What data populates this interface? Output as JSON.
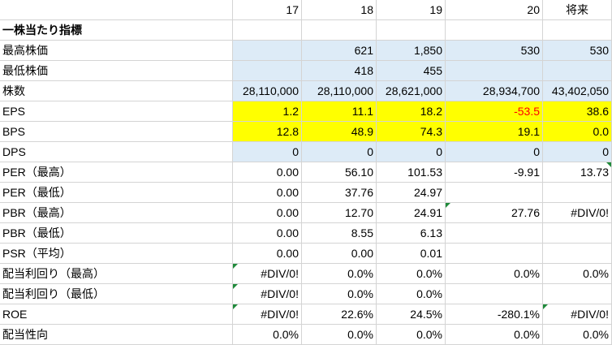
{
  "header": [
    "",
    "17",
    "18",
    "19",
    "20",
    "将来"
  ],
  "section_title": "一株当たり指標",
  "rows": [
    {
      "label": "最高株価",
      "values": [
        "",
        "621",
        "1,850",
        "530",
        "530"
      ]
    },
    {
      "label": "最低株価",
      "values": [
        "",
        "418",
        "455",
        "",
        ""
      ]
    },
    {
      "label": "株数",
      "values": [
        "28,110,000",
        "28,110,000",
        "28,621,000",
        "28,934,700",
        "43,402,050"
      ]
    },
    {
      "label": "EPS",
      "values": [
        "1.2",
        "11.1",
        "18.2",
        "-53.5",
        "38.6"
      ]
    },
    {
      "label": "BPS",
      "values": [
        "12.8",
        "48.9",
        "74.3",
        "19.1",
        "0.0"
      ]
    },
    {
      "label": "DPS",
      "values": [
        "0",
        "0",
        "0",
        "0",
        "0"
      ]
    },
    {
      "label": "PER（最高）",
      "values": [
        "0.00",
        "56.10",
        "101.53",
        "-9.91",
        "13.73"
      ]
    },
    {
      "label": "PER（最低）",
      "values": [
        "0.00",
        "37.76",
        "24.97",
        "",
        ""
      ]
    },
    {
      "label": "PBR（最高）",
      "values": [
        "0.00",
        "12.70",
        "24.91",
        "27.76",
        "#DIV/0!"
      ]
    },
    {
      "label": "PBR（最低）",
      "values": [
        "0.00",
        "8.55",
        "6.13",
        "",
        ""
      ]
    },
    {
      "label": "PSR（平均）",
      "values": [
        "0.00",
        "0.00",
        "0.01",
        "",
        ""
      ]
    },
    {
      "label": "配当利回り（最高）",
      "values": [
        "#DIV/0!",
        "0.0%",
        "0.0%",
        "0.0%",
        "0.0%"
      ]
    },
    {
      "label": "配当利回り（最低）",
      "values": [
        "#DIV/0!",
        "0.0%",
        "0.0%",
        "",
        ""
      ]
    },
    {
      "label": "ROE",
      "values": [
        "#DIV/0!",
        "22.6%",
        "24.5%",
        "-280.1%",
        "#DIV/0!"
      ]
    },
    {
      "label": "配当性向",
      "values": [
        "0.0%",
        "0.0%",
        "0.0%",
        "0.0%",
        "0.0%"
      ]
    }
  ],
  "colors": {
    "highlight_blue": "#ddebf7",
    "highlight_yellow": "#ffff00",
    "negative_red": "#ff0000",
    "error_flag_green": "#1f8a3a",
    "gridline": "#d4d4d4"
  }
}
